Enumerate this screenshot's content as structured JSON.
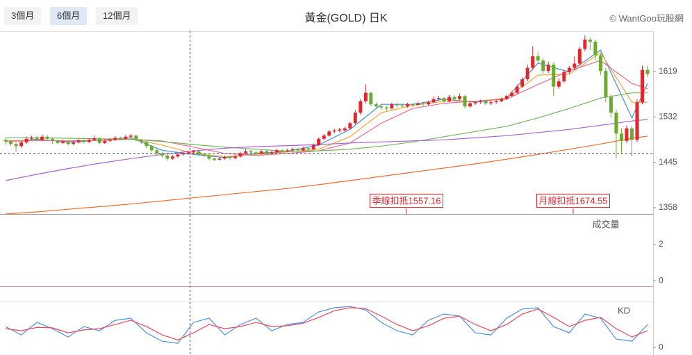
{
  "tabs": [
    "3個月",
    "6個月",
    "12個月"
  ],
  "active_tab": 1,
  "watermark": "© WantGoo玩股網",
  "chart_data": [
    {
      "type": "candlestick",
      "title": "黃金(GOLD) 日K",
      "up_color": "#e3262e",
      "down_color": "#6aab2e",
      "ylim": [
        1346,
        1696
      ],
      "yticks": [
        1358,
        1445,
        1532,
        1619
      ],
      "hline": 1462,
      "annotations": [
        "季線扣抵1557.16",
        "月線扣抵1674.55"
      ],
      "ohlc": [
        [
          1488,
          1492,
          1478,
          1485
        ],
        [
          1485,
          1488,
          1476,
          1480
        ],
        [
          1480,
          1483,
          1465,
          1476
        ],
        [
          1476,
          1486,
          1473,
          1483
        ],
        [
          1483,
          1494,
          1480,
          1490
        ],
        [
          1490,
          1496,
          1487,
          1492
        ],
        [
          1492,
          1495,
          1485,
          1488
        ],
        [
          1488,
          1498,
          1486,
          1494
        ],
        [
          1494,
          1497,
          1487,
          1490
        ],
        [
          1490,
          1493,
          1480,
          1486
        ],
        [
          1486,
          1489,
          1479,
          1482
        ],
        [
          1482,
          1488,
          1480,
          1485
        ],
        [
          1485,
          1487,
          1477,
          1480
        ],
        [
          1480,
          1486,
          1478,
          1483
        ],
        [
          1483,
          1490,
          1481,
          1487
        ],
        [
          1487,
          1489,
          1481,
          1484
        ],
        [
          1484,
          1491,
          1482,
          1488
        ],
        [
          1488,
          1497,
          1486,
          1491
        ],
        [
          1491,
          1493,
          1479,
          1482
        ],
        [
          1482,
          1489,
          1480,
          1486
        ],
        [
          1486,
          1491,
          1484,
          1488
        ],
        [
          1488,
          1495,
          1486,
          1492
        ],
        [
          1492,
          1494,
          1487,
          1490
        ],
        [
          1490,
          1497,
          1488,
          1494
        ],
        [
          1494,
          1499,
          1491,
          1496
        ],
        [
          1496,
          1498,
          1485,
          1488
        ],
        [
          1488,
          1490,
          1480,
          1484
        ],
        [
          1484,
          1486,
          1472,
          1476
        ],
        [
          1476,
          1478,
          1465,
          1468
        ],
        [
          1468,
          1471,
          1458,
          1462
        ],
        [
          1462,
          1465,
          1454,
          1458
        ],
        [
          1458,
          1461,
          1448,
          1452
        ],
        [
          1452,
          1459,
          1450,
          1456
        ],
        [
          1456,
          1463,
          1454,
          1460
        ],
        [
          1460,
          1465,
          1457,
          1462
        ],
        [
          1462,
          1467,
          1459,
          1464
        ],
        [
          1464,
          1469,
          1461,
          1466
        ],
        [
          1466,
          1468,
          1457,
          1460
        ],
        [
          1460,
          1462,
          1455,
          1458
        ],
        [
          1458,
          1460,
          1449,
          1452
        ],
        [
          1452,
          1454,
          1447,
          1450
        ],
        [
          1450,
          1455,
          1448,
          1452
        ],
        [
          1452,
          1458,
          1450,
          1455
        ],
        [
          1455,
          1457,
          1450,
          1453
        ],
        [
          1453,
          1459,
          1451,
          1456
        ],
        [
          1456,
          1465,
          1454,
          1462
        ],
        [
          1462,
          1470,
          1460,
          1466
        ],
        [
          1466,
          1469,
          1461,
          1464
        ],
        [
          1464,
          1466,
          1459,
          1462
        ],
        [
          1462,
          1468,
          1460,
          1466
        ],
        [
          1466,
          1468,
          1460,
          1462
        ],
        [
          1462,
          1467,
          1460,
          1464
        ],
        [
          1464,
          1471,
          1462,
          1468
        ],
        [
          1468,
          1470,
          1463,
          1466
        ],
        [
          1466,
          1471,
          1464,
          1468
        ],
        [
          1468,
          1473,
          1466,
          1470
        ],
        [
          1470,
          1472,
          1465,
          1468
        ],
        [
          1468,
          1475,
          1466,
          1472
        ],
        [
          1472,
          1474,
          1467,
          1470
        ],
        [
          1470,
          1481,
          1468,
          1478
        ],
        [
          1478,
          1493,
          1476,
          1490
        ],
        [
          1490,
          1499,
          1487,
          1496
        ],
        [
          1496,
          1507,
          1494,
          1504
        ],
        [
          1504,
          1509,
          1500,
          1506
        ],
        [
          1506,
          1511,
          1502,
          1508
        ],
        [
          1506,
          1513,
          1504,
          1510
        ],
        [
          1510,
          1523,
          1508,
          1520
        ],
        [
          1520,
          1545,
          1518,
          1540
        ],
        [
          1540,
          1566,
          1536,
          1562
        ],
        [
          1562,
          1594,
          1558,
          1578
        ],
        [
          1578,
          1580,
          1552,
          1556
        ],
        [
          1556,
          1560,
          1548,
          1552
        ],
        [
          1552,
          1556,
          1546,
          1550
        ],
        [
          1550,
          1553,
          1544,
          1548
        ],
        [
          1548,
          1559,
          1546,
          1556
        ],
        [
          1556,
          1558,
          1550,
          1554
        ],
        [
          1554,
          1557,
          1549,
          1552
        ],
        [
          1552,
          1559,
          1550,
          1556
        ],
        [
          1556,
          1558,
          1551,
          1555
        ],
        [
          1555,
          1561,
          1553,
          1558
        ],
        [
          1558,
          1560,
          1553,
          1556
        ],
        [
          1556,
          1563,
          1554,
          1560
        ],
        [
          1560,
          1571,
          1558,
          1566
        ],
        [
          1566,
          1572,
          1563,
          1568
        ],
        [
          1568,
          1570,
          1559,
          1562
        ],
        [
          1562,
          1574,
          1560,
          1570
        ],
        [
          1570,
          1573,
          1563,
          1566
        ],
        [
          1566,
          1577,
          1564,
          1572
        ],
        [
          1572,
          1574,
          1548,
          1552
        ],
        [
          1552,
          1561,
          1550,
          1558
        ],
        [
          1558,
          1563,
          1555,
          1560
        ],
        [
          1560,
          1565,
          1557,
          1562
        ],
        [
          1562,
          1564,
          1555,
          1558
        ],
        [
          1558,
          1563,
          1555,
          1560
        ],
        [
          1560,
          1565,
          1557,
          1562
        ],
        [
          1562,
          1569,
          1560,
          1566
        ],
        [
          1566,
          1575,
          1564,
          1572
        ],
        [
          1572,
          1581,
          1570,
          1578
        ],
        [
          1578,
          1594,
          1575,
          1590
        ],
        [
          1590,
          1608,
          1587,
          1604
        ],
        [
          1604,
          1632,
          1600,
          1626
        ],
        [
          1626,
          1667,
          1622,
          1648
        ],
        [
          1648,
          1656,
          1634,
          1640
        ],
        [
          1640,
          1644,
          1615,
          1620
        ],
        [
          1620,
          1638,
          1616,
          1632
        ],
        [
          1632,
          1636,
          1572,
          1590
        ],
        [
          1590,
          1606,
          1586,
          1600
        ],
        [
          1600,
          1622,
          1597,
          1618
        ],
        [
          1618,
          1630,
          1614,
          1626
        ],
        [
          1626,
          1648,
          1622,
          1634
        ],
        [
          1634,
          1666,
          1630,
          1662
        ],
        [
          1662,
          1688,
          1658,
          1680
        ],
        [
          1680,
          1684,
          1660,
          1676
        ],
        [
          1676,
          1680,
          1640,
          1650
        ],
        [
          1650,
          1654,
          1612,
          1620
        ],
        [
          1620,
          1626,
          1560,
          1570
        ],
        [
          1570,
          1576,
          1530,
          1540
        ],
        [
          1540,
          1546,
          1452,
          1500
        ],
        [
          1500,
          1510,
          1460,
          1486
        ],
        [
          1486,
          1516,
          1482,
          1510
        ],
        [
          1510,
          1514,
          1456,
          1488
        ],
        [
          1488,
          1566,
          1484,
          1560
        ],
        [
          1560,
          1630,
          1556,
          1622
        ],
        [
          1622,
          1630,
          1608,
          1614
        ]
      ],
      "overlay_x": [
        0,
        6,
        12,
        18,
        24,
        30,
        36,
        42,
        48,
        54,
        60,
        66,
        72,
        78,
        84,
        90,
        96,
        102,
        108,
        114,
        120,
        123
      ],
      "series": [
        {
          "color": "#3d8fdc",
          "values": [
            1484,
            1489,
            1484,
            1487,
            1492,
            1468,
            1460,
            1454,
            1462,
            1466,
            1478,
            1508,
            1556,
            1556,
            1566,
            1560,
            1568,
            1635,
            1618,
            1660,
            1530,
            1596
          ]
        },
        {
          "color": "#f2a53a",
          "values": [
            1484,
            1487,
            1486,
            1487,
            1490,
            1478,
            1462,
            1456,
            1460,
            1465,
            1470,
            1494,
            1540,
            1554,
            1562,
            1562,
            1568,
            1612,
            1614,
            1655,
            1560,
            1560
          ]
        },
        {
          "color": "#ea6a92",
          "values": [
            1486,
            1487,
            1486,
            1487,
            1489,
            1486,
            1474,
            1462,
            1458,
            1462,
            1467,
            1482,
            1520,
            1548,
            1558,
            1562,
            1566,
            1594,
            1620,
            1640,
            1596,
            1586
          ]
        },
        {
          "color": "#72b656",
          "values": [
            1492,
            1492,
            1491,
            1490,
            1489,
            1485,
            1479,
            1474,
            1470,
            1466,
            1467,
            1470,
            1476,
            1484,
            1494,
            1504,
            1514,
            1530,
            1548,
            1568,
            1578,
            1578
          ]
        },
        {
          "color": "#a661d4",
          "values": [
            1410,
            1422,
            1433,
            1443,
            1452,
            1460,
            1467,
            1472,
            1475,
            1477,
            1479,
            1482,
            1484,
            1486,
            1488,
            1492,
            1496,
            1502,
            1508,
            1516,
            1524,
            1527
          ]
        },
        {
          "color": "#f26a30",
          "values": [
            1346,
            1350,
            1355,
            1360,
            1365,
            1371,
            1377,
            1383,
            1389,
            1395,
            1402,
            1410,
            1418,
            1426,
            1434,
            1442,
            1451,
            1460,
            1470,
            1480,
            1491,
            1495
          ]
        }
      ]
    },
    {
      "type": "volume",
      "title": "成交量",
      "ylim": [
        -0.3,
        3.6
      ],
      "yticks": [
        0,
        2
      ]
    },
    {
      "type": "line",
      "title": "KD",
      "ylim": [
        -18,
        110
      ],
      "yticks": [
        0
      ],
      "x": [
        0,
        3,
        6,
        9,
        12,
        15,
        18,
        21,
        24,
        27,
        30,
        33,
        36,
        39,
        42,
        45,
        48,
        51,
        54,
        57,
        60,
        63,
        66,
        69,
        72,
        75,
        78,
        81,
        84,
        87,
        90,
        93,
        96,
        99,
        102,
        105,
        108,
        111,
        114,
        117,
        120,
        123
      ],
      "series": [
        {
          "color": "#4a8fe0",
          "values": [
            50,
            30,
            60,
            45,
            25,
            50,
            40,
            65,
            70,
            35,
            15,
            10,
            60,
            70,
            30,
            55,
            70,
            40,
            55,
            60,
            85,
            95,
            98,
            90,
            60,
            40,
            30,
            65,
            80,
            75,
            35,
            30,
            70,
            92,
            95,
            50,
            35,
            80,
            70,
            20,
            15,
            55
          ]
        },
        {
          "color": "#e8485a",
          "values": [
            45,
            40,
            48,
            47,
            35,
            42,
            45,
            55,
            65,
            50,
            30,
            18,
            35,
            55,
            45,
            50,
            60,
            50,
            52,
            58,
            72,
            88,
            95,
            93,
            75,
            55,
            40,
            52,
            70,
            75,
            55,
            40,
            55,
            80,
            92,
            72,
            50,
            65,
            72,
            45,
            25,
            40
          ]
        }
      ]
    }
  ]
}
